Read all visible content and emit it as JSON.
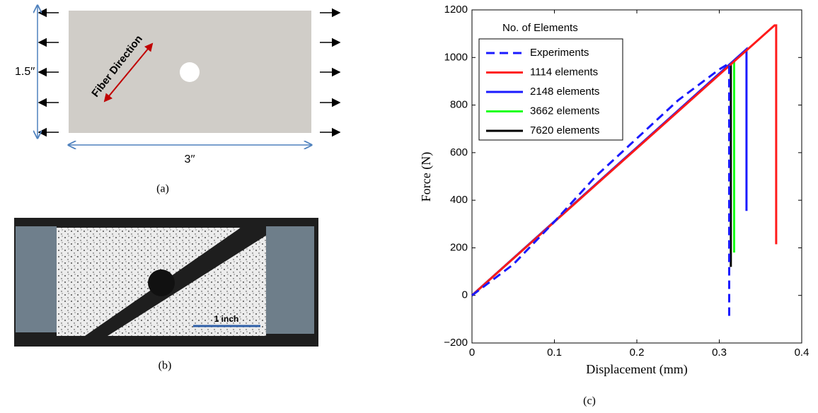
{
  "panel_a": {
    "height_label": "1.5′′",
    "width_label": "3′′",
    "fiber_label": "Fiber Direction",
    "caption": "(a)"
  },
  "panel_b": {
    "scale_label": "1 inch",
    "caption": "(b)"
  },
  "panel_c": {
    "caption": "(c)"
  },
  "chart_data": {
    "type": "line",
    "xlabel": "Displacement (mm)",
    "ylabel": "Force (N)",
    "legend_title": "No. of Elements",
    "legend": "upper left",
    "xlim": [
      0,
      0.4
    ],
    "xticks": [
      0,
      0.1,
      0.2,
      0.3,
      0.4
    ],
    "ylim": [
      -200,
      1200
    ],
    "yticks": [
      {
        "value": -200,
        "label": "−200"
      },
      0,
      200,
      400,
      600,
      800,
      1000,
      1200
    ],
    "series": [
      {
        "name": "Experiments",
        "color": "#1a1aff",
        "style": "dashed",
        "x": [
          0,
          0.05,
          0.1,
          0.15,
          0.2,
          0.25,
          0.3,
          0.312,
          0.312
        ],
        "values": [
          0,
          130,
          310,
          500,
          660,
          820,
          950,
          975,
          -100
        ]
      },
      {
        "name": "1114 elements",
        "color": "#ff1a1a",
        "style": "solid",
        "x": [
          0,
          0.367,
          0.369,
          0.369
        ],
        "values": [
          0,
          1135,
          1135,
          215
        ]
      },
      {
        "name": "2148 elements",
        "color": "#1a1aff",
        "style": "solid",
        "x": [
          0,
          0.333,
          0.333
        ],
        "values": [
          0,
          1035,
          355
        ]
      },
      {
        "name": "3662 elements",
        "color": "#1aff1a",
        "style": "solid",
        "x": [
          0,
          0.318,
          0.318
        ],
        "values": [
          0,
          985,
          180
        ]
      },
      {
        "name": "7620 elements",
        "color": "#000000",
        "style": "solid",
        "x": [
          0,
          0.314,
          0.314
        ],
        "values": [
          0,
          975,
          120
        ]
      }
    ]
  }
}
